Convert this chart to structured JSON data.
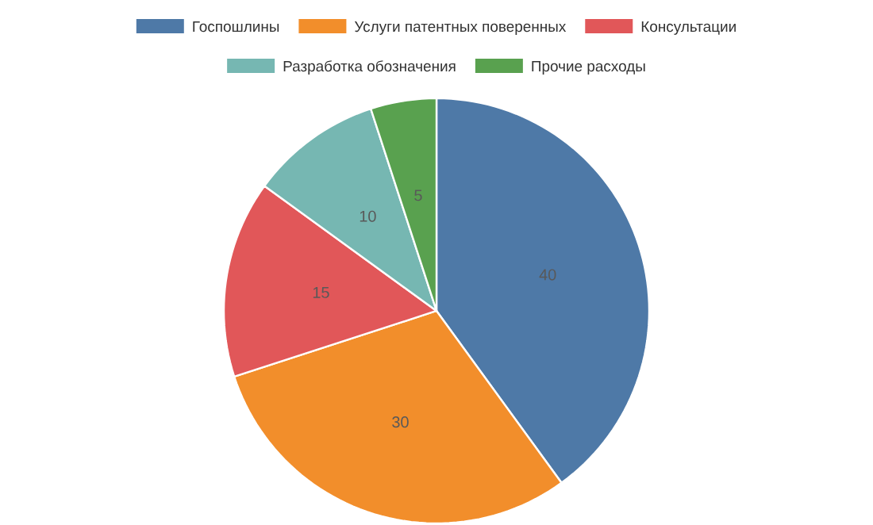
{
  "chart_data": {
    "type": "pie",
    "categories": [
      "Госпошлины",
      "Услуги патентных поверенных",
      "Консультации",
      "Разработка обозначения",
      "Прочие расходы"
    ],
    "values": [
      40,
      30,
      15,
      10,
      5
    ],
    "colors": [
      "#4e79a7",
      "#f28e2b",
      "#e15759",
      "#76b7b2",
      "#59a14f"
    ],
    "data_labels": true,
    "legend": "top"
  }
}
